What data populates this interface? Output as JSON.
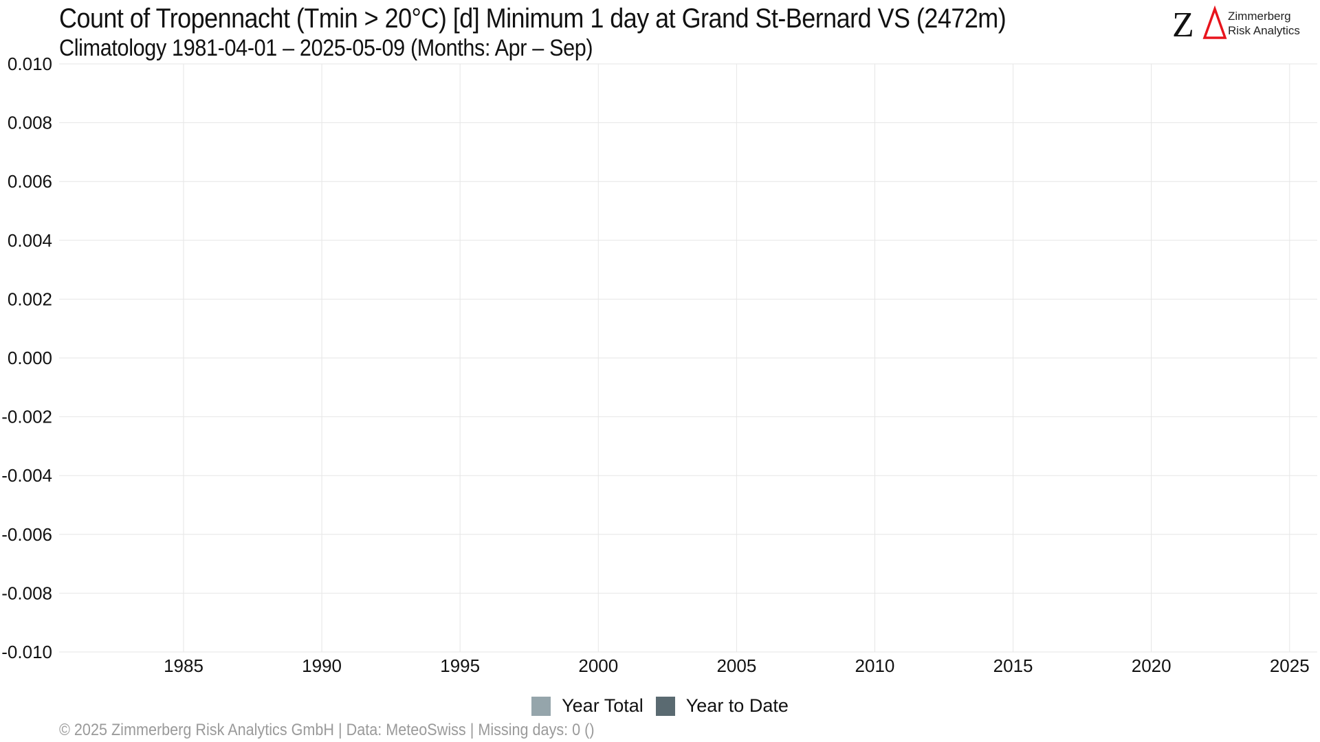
{
  "header": {
    "title": "Count of Tropennacht (Tmin > 20°C) [d] Minimum 1 day at Grand St-Bernard  VS (2472m)",
    "subtitle": "Climatology 1981-04-01 – 2025-05-09 (Months: Apr – Sep)"
  },
  "logo": {
    "mark": "ZΔ",
    "line1": "Zimmerberg",
    "line2": "Risk Analytics",
    "z_color": "#111111",
    "delta_color": "#e8141c"
  },
  "chart_data": {
    "type": "bar",
    "title": "Count of Tropennacht (Tmin > 20°C) [d] Minimum 1 day at Grand St-Bernard  VS (2472m)",
    "subtitle": "Climatology 1981-04-01 – 2025-05-09 (Months: Apr – Sep)",
    "xlabel": "",
    "ylabel": "",
    "xlim": [
      1980.5,
      2026
    ],
    "ylim": [
      -0.01,
      0.01
    ],
    "x_ticks": [
      1985,
      1990,
      1995,
      2000,
      2005,
      2010,
      2015,
      2020,
      2025
    ],
    "x_tick_labels": [
      "1985",
      "1990",
      "1995",
      "2000",
      "2005",
      "2010",
      "2015",
      "2020",
      "2025"
    ],
    "y_ticks": [
      -0.01,
      -0.008,
      -0.006,
      -0.004,
      -0.002,
      0.0,
      0.002,
      0.004,
      0.006,
      0.008,
      0.01
    ],
    "y_tick_labels": [
      "-0.010",
      "-0.008",
      "-0.006",
      "-0.004",
      "-0.002",
      "0.000",
      "0.002",
      "0.004",
      "0.006",
      "0.008",
      "0.010"
    ],
    "grid": true,
    "legend_position": "bottom",
    "series": [
      {
        "name": "Year Total",
        "color": "#95a5ab",
        "values": []
      },
      {
        "name": "Year to Date",
        "color": "#5a6a71",
        "values": []
      }
    ]
  },
  "footer": {
    "text": "©  2025 Zimmerberg Risk Analytics GmbH | Data: MeteoSwiss | Missing days: 0 ()"
  }
}
